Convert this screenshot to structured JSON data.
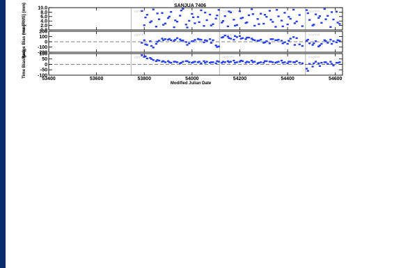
{
  "colors": {
    "points": "#1f3cff",
    "background": "#ffffff",
    "left_band": "#0b2a6b",
    "station_lines": "#b4b4b4"
  },
  "chart_data": {
    "type": "scatter",
    "title": "SANJUA 7406",
    "xlabel": "Modified Julian Date",
    "xlim": [
      53400,
      54630
    ],
    "xticks": [
      53400,
      53600,
      53800,
      54000,
      54200,
      54400,
      54600
    ],
    "station_change_mjd": [
      53745,
      54115,
      54475
    ],
    "station_labels": [
      "yyyymm",
      "yyyymm",
      "yyyymm"
    ],
    "panels": [
      {
        "name": "rms-panel",
        "ylabel": "rms (RMS) (mm)",
        "ylim": [
          0,
          10
        ],
        "yticks": [
          0,
          2,
          4,
          6,
          8,
          10
        ],
        "ytick_labels": [
          "0.0",
          "2.0",
          "4.0",
          "6.0",
          "8.0",
          "10.0"
        ],
        "reference_line": null,
        "series": {
          "x": [
            53790,
            53800,
            53812,
            53825,
            53838,
            53850,
            53862,
            53875,
            53888,
            53900,
            53912,
            53925,
            53938,
            53950,
            53962,
            53975,
            53988,
            54000,
            54012,
            54025,
            54038,
            54050,
            54062,
            54075,
            54088,
            54100,
            54112,
            54125,
            54138,
            54150,
            54162,
            54175,
            54188,
            54200,
            54212,
            54225,
            54238,
            54250,
            54262,
            54275,
            54288,
            54300,
            54312,
            54325,
            54338,
            54350,
            54362,
            54375,
            54388,
            54400,
            54412,
            54425,
            54438,
            54450,
            54462,
            54480,
            54492,
            54505,
            54518,
            54530,
            54542,
            54555,
            54568,
            54580,
            54592,
            54605,
            54618,
            53805,
            53830,
            53855,
            53880,
            53905,
            53930,
            53955,
            53980,
            54005,
            54030,
            54055,
            54080,
            54105,
            54130,
            54155,
            54180,
            54205,
            54230,
            54255,
            54280,
            54305,
            54330,
            54355,
            54380,
            54405,
            54430,
            54485,
            54510,
            54535,
            54560,
            54585,
            54610
          ],
          "y": [
            8.5,
            2.1,
            6.8,
            3.4,
            9.2,
            1.5,
            4.8,
            7.6,
            2.9,
            5.3,
            8.1,
            1.2,
            3.7,
            6.4,
            9.5,
            2.4,
            4.1,
            7.2,
            3.0,
            5.8,
            8.8,
            1.8,
            4.4,
            6.9,
            2.6,
            5.1,
            9.0,
            3.3,
            6.2,
            1.6,
            7.9,
            4.6,
            2.2,
            8.4,
            5.5,
            3.1,
            6.6,
            9.3,
            1.9,
            4.9,
            7.3,
            2.8,
            5.9,
            8.6,
            3.6,
            1.4,
            6.1,
            4.2,
            7.7,
            2.5,
            5.0,
            9.1,
            3.8,
            6.7,
            1.7,
            8.9,
            4.5,
            2.0,
            7.0,
            5.4,
            3.2,
            9.4,
            6.3,
            1.3,
            4.7,
            8.2,
            2.7,
            5.6,
            3.9,
            7.4,
            2.3,
            6.0,
            4.3,
            8.7,
            1.1,
            5.7,
            3.5,
            7.8,
            2.0,
            6.5,
            4.0,
            8.3,
            1.9,
            5.2,
            3.4,
            7.1,
            2.6,
            6.8,
            4.6,
            9.0,
            1.6,
            5.9,
            3.0,
            7.5,
            2.4,
            6.2,
            4.8,
            8.0,
            3.3
          ]
        }
      },
      {
        "name": "range-bias-panel",
        "ylabel": "Range Bias (mm)",
        "ylim": [
          -200,
          200
        ],
        "yticks": [
          -200,
          -100,
          0,
          100,
          200
        ],
        "ytick_labels": [
          "-200",
          "-100",
          "0",
          "100",
          "200"
        ],
        "reference_line": 0,
        "series": {
          "x": [
            53790,
            53800,
            53812,
            53825,
            53838,
            53850,
            53862,
            53875,
            53888,
            53900,
            53912,
            53925,
            53938,
            53950,
            53962,
            53975,
            53988,
            54000,
            54012,
            54025,
            54038,
            54050,
            54062,
            54075,
            54088,
            54100,
            54112,
            54125,
            54138,
            54150,
            54162,
            54175,
            54188,
            54200,
            54212,
            54225,
            54238,
            54250,
            54262,
            54275,
            54288,
            54300,
            54312,
            54325,
            54338,
            54350,
            54362,
            54375,
            54388,
            54400,
            54412,
            54425,
            54438,
            54450,
            54462,
            54480,
            54492,
            54505,
            54518,
            54530,
            54542,
            54555,
            54568,
            54580,
            54592,
            54605,
            54618,
            53805,
            53830,
            53855,
            53880,
            53905,
            53930,
            53955,
            53980,
            54005,
            54030,
            54055,
            54080,
            54105,
            54130,
            54155,
            54180,
            54205,
            54230,
            54255,
            54280,
            54305,
            54330,
            54355,
            54380,
            54405,
            54430,
            54485,
            54510,
            54535,
            54560,
            54585,
            54610
          ],
          "y": [
            -20,
            30,
            -60,
            10,
            -110,
            -40,
            20,
            60,
            50,
            40,
            30,
            20,
            70,
            45,
            25,
            -5,
            -30,
            10,
            35,
            55,
            40,
            -10,
            20,
            50,
            30,
            -70,
            -90,
            80,
            120,
            100,
            60,
            40,
            90,
            110,
            70,
            50,
            80,
            60,
            30,
            20,
            40,
            -20,
            10,
            -30,
            50,
            30,
            40,
            20,
            -10,
            -40,
            60,
            90,
            70,
            -50,
            -80,
            20,
            -30,
            -60,
            10,
            -90,
            -40,
            30,
            -20,
            40,
            10,
            -10,
            20,
            -50,
            -80,
            0,
            30,
            55,
            40,
            20,
            -60,
            10,
            45,
            30,
            -20,
            -100,
            90,
            70,
            110,
            60,
            80,
            40,
            20,
            -10,
            50,
            30,
            -30,
            20,
            -60,
            40,
            -30,
            -70,
            10,
            -40,
            30
          ]
        }
      },
      {
        "name": "time-bias-panel",
        "ylabel": "Time Bias (µs)",
        "ylim": [
          -100,
          100
        ],
        "yticks": [
          -100,
          -50,
          0,
          50,
          100
        ],
        "ytick_labels": [
          "-100",
          "-50",
          "0",
          "50",
          "100"
        ],
        "reference_line": 0,
        "series": {
          "x": [
            53790,
            53800,
            53812,
            53825,
            53838,
            53850,
            53862,
            53875,
            53888,
            53900,
            53912,
            53925,
            53938,
            53950,
            53962,
            53975,
            53988,
            54000,
            54012,
            54025,
            54038,
            54050,
            54062,
            54075,
            54088,
            54100,
            54112,
            54125,
            54138,
            54150,
            54162,
            54175,
            54188,
            54200,
            54212,
            54225,
            54238,
            54250,
            54262,
            54275,
            54288,
            54300,
            54312,
            54325,
            54338,
            54350,
            54362,
            54375,
            54388,
            54400,
            54412,
            54425,
            54438,
            54450,
            54462,
            54480,
            54492,
            54505,
            54518,
            54530,
            54542,
            54555,
            54568,
            54580,
            54592,
            54605,
            54618,
            53805,
            53830,
            53855,
            53880,
            53905,
            53930,
            53955,
            53980,
            54005,
            54030,
            54055,
            54080,
            54105,
            54130,
            54155,
            54180,
            54205,
            54230,
            54255,
            54280,
            54305,
            54330,
            54355,
            54380,
            54405,
            54430,
            54485,
            54510,
            54535,
            54560,
            54585,
            54610
          ],
          "y": [
            85,
            70,
            55,
            60,
            40,
            30,
            35,
            25,
            20,
            30,
            15,
            25,
            20,
            10,
            25,
            30,
            20,
            15,
            25,
            20,
            10,
            30,
            25,
            15,
            20,
            10,
            25,
            15,
            20,
            30,
            25,
            35,
            20,
            25,
            30,
            15,
            20,
            35,
            25,
            10,
            20,
            15,
            30,
            25,
            20,
            15,
            25,
            35,
            20,
            10,
            25,
            20,
            30,
            15,
            10,
            -40,
            5,
            -20,
            25,
            10,
            15,
            20,
            5,
            25,
            -10,
            15,
            20,
            75,
            50,
            40,
            30,
            20,
            25,
            15,
            30,
            20,
            25,
            15,
            20,
            30,
            25,
            20,
            15,
            35,
            25,
            20,
            15,
            30,
            25,
            20,
            15,
            25,
            20,
            -60,
            10,
            -15,
            20,
            5,
            15
          ]
        }
      }
    ]
  }
}
